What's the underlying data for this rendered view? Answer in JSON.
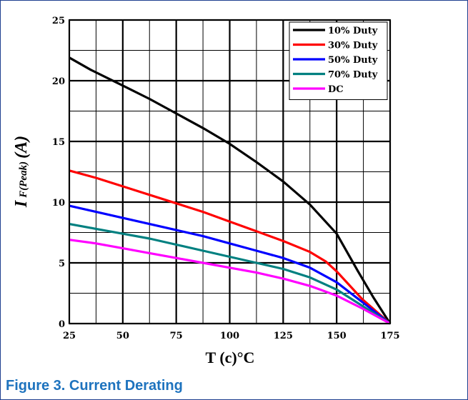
{
  "caption": "Figure 3. Current Derating",
  "colors": {
    "caption": "#1e73be",
    "frame": "#1f3f8f",
    "grid": "#000000",
    "series": [
      "#000000",
      "#ff1a1a",
      "#1a1aff",
      "#1f8080",
      "#ff1aff"
    ]
  },
  "chart_data": {
    "type": "line",
    "xlabel": "T (c)°C",
    "ylabel_main": "I",
    "ylabel_sub": "F(Peak)",
    "ylabel_unit": "(A)",
    "xlim": [
      25,
      175
    ],
    "ylim": [
      0,
      25
    ],
    "xticks": [
      25,
      50,
      75,
      100,
      125,
      150,
      175
    ],
    "yticks": [
      0,
      5,
      10,
      15,
      20,
      25
    ],
    "grid": true,
    "legend_position": "top-right",
    "series": [
      {
        "name": "10% Duty",
        "color": "#000000",
        "points": [
          [
            25,
            21.9
          ],
          [
            35,
            20.9
          ],
          [
            50,
            19.6
          ],
          [
            62.5,
            18.5
          ],
          [
            75,
            17.3
          ],
          [
            87.5,
            16.1
          ],
          [
            100,
            14.8
          ],
          [
            112.5,
            13.3
          ],
          [
            125,
            11.7
          ],
          [
            137.5,
            9.8
          ],
          [
            150,
            7.4
          ],
          [
            160,
            4.3
          ],
          [
            167,
            2.2
          ],
          [
            175,
            0
          ]
        ]
      },
      {
        "name": "30% Duty",
        "color": "#ff0000",
        "points": [
          [
            25,
            12.6
          ],
          [
            37.5,
            12.0
          ],
          [
            50,
            11.3
          ],
          [
            62.5,
            10.6
          ],
          [
            75,
            9.9
          ],
          [
            87.5,
            9.2
          ],
          [
            100,
            8.4
          ],
          [
            112.5,
            7.6
          ],
          [
            125,
            6.8
          ],
          [
            137.5,
            5.9
          ],
          [
            145,
            5.1
          ],
          [
            150,
            4.3
          ],
          [
            162,
            2.0
          ],
          [
            175,
            0
          ]
        ]
      },
      {
        "name": "50% Duty",
        "color": "#0000ff",
        "points": [
          [
            25,
            9.7
          ],
          [
            37.5,
            9.2
          ],
          [
            50,
            8.7
          ],
          [
            62.5,
            8.2
          ],
          [
            75,
            7.7
          ],
          [
            87.5,
            7.2
          ],
          [
            100,
            6.6
          ],
          [
            112.5,
            6.0
          ],
          [
            125,
            5.4
          ],
          [
            137.5,
            4.6
          ],
          [
            150,
            3.4
          ],
          [
            162.5,
            1.7
          ],
          [
            175,
            0
          ]
        ]
      },
      {
        "name": "70% Duty",
        "color": "#008080",
        "points": [
          [
            25,
            8.2
          ],
          [
            37.5,
            7.8
          ],
          [
            50,
            7.4
          ],
          [
            62.5,
            7.0
          ],
          [
            75,
            6.5
          ],
          [
            87.5,
            6.0
          ],
          [
            100,
            5.5
          ],
          [
            112.5,
            5.0
          ],
          [
            125,
            4.5
          ],
          [
            137.5,
            3.8
          ],
          [
            150,
            2.8
          ],
          [
            162.5,
            1.4
          ],
          [
            175,
            0
          ]
        ]
      },
      {
        "name": "DC",
        "color": "#ff00ff",
        "points": [
          [
            25,
            6.9
          ],
          [
            37.5,
            6.6
          ],
          [
            50,
            6.2
          ],
          [
            62.5,
            5.8
          ],
          [
            75,
            5.4
          ],
          [
            87.5,
            5.0
          ],
          [
            100,
            4.6
          ],
          [
            112.5,
            4.2
          ],
          [
            125,
            3.7
          ],
          [
            137.5,
            3.1
          ],
          [
            150,
            2.3
          ],
          [
            162.5,
            1.2
          ],
          [
            175,
            0
          ]
        ]
      }
    ]
  }
}
